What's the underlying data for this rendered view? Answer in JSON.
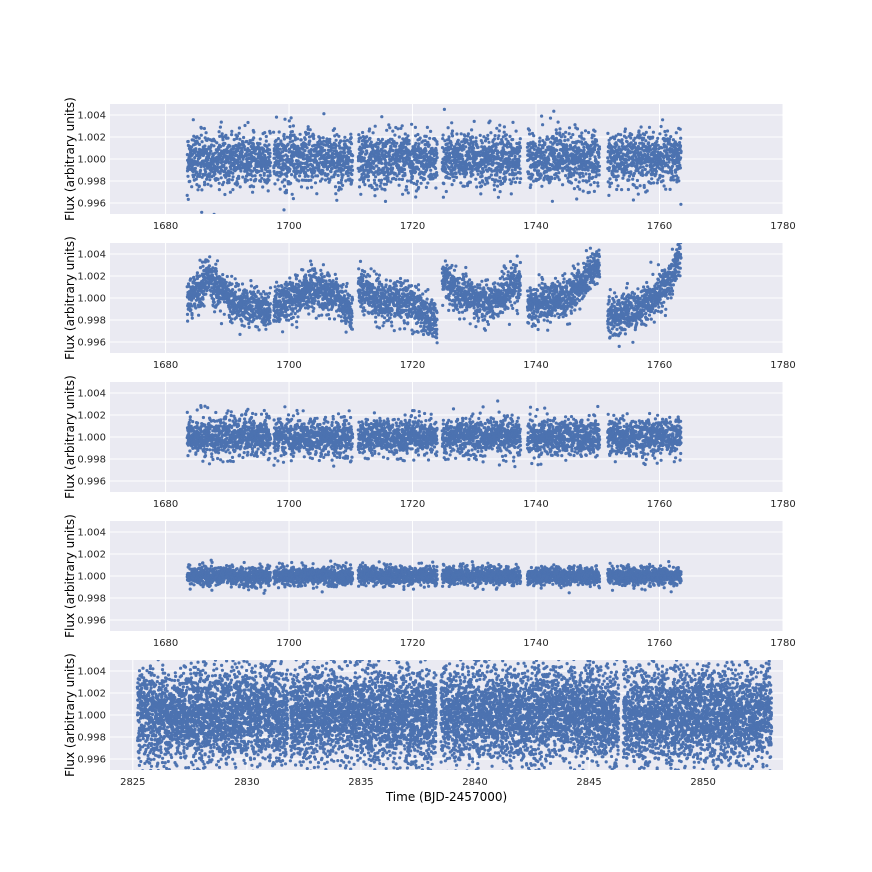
{
  "figure": {
    "background": "#ffffff",
    "panel_background": "#eaeaf2",
    "grid_color": "#ffffff",
    "marker_color": "#4c72b0"
  },
  "chart_data": [
    {
      "type": "scatter",
      "ylabel": "Flux (arbitrary units)",
      "xlabel": "",
      "xlim": [
        1671,
        1780
      ],
      "ylim": [
        0.995,
        1.005
      ],
      "xticks": [
        "1680",
        "1700",
        "1720",
        "1740",
        "1760",
        "1780"
      ],
      "yticks": [
        "0.996",
        "0.998",
        "1.000",
        "1.002",
        "1.004"
      ],
      "grid": true,
      "series": [
        {
          "segments": [
            [
              1683.5,
              1697.0
            ],
            [
              1697.5,
              1710.3
            ],
            [
              1711.2,
              1724.0
            ],
            [
              1724.8,
              1737.5
            ],
            [
              1738.6,
              1750.3
            ],
            [
              1751.6,
              1763.5
            ]
          ],
          "baseline": 1.0,
          "scatter_std": 0.0012,
          "points_per_day": 55,
          "trend": "flat"
        }
      ]
    },
    {
      "type": "scatter",
      "ylabel": "Flux (arbitrary units)",
      "xlabel": "",
      "xlim": [
        1671,
        1780
      ],
      "ylim": [
        0.995,
        1.005
      ],
      "xticks": [
        "1680",
        "1700",
        "1720",
        "1740",
        "1760",
        "1780"
      ],
      "yticks": [
        "0.996",
        "0.998",
        "1.000",
        "1.002",
        "1.004"
      ],
      "grid": true,
      "series": [
        {
          "segments": [
            [
              1683.5,
              1697.0
            ],
            [
              1697.5,
              1710.3
            ],
            [
              1711.2,
              1724.0
            ],
            [
              1724.8,
              1737.5
            ],
            [
              1738.6,
              1750.3
            ],
            [
              1751.6,
              1763.5
            ]
          ],
          "baseline": 1.0,
          "scatter_std": 0.0009,
          "points_per_day": 55,
          "trend": "systematics",
          "segment_trends": [
            [
              [
                0,
                0.9995
              ],
              [
                0.25,
                1.0018
              ],
              [
                0.5,
                1.0
              ],
              [
                1,
                0.9985
              ]
            ],
            [
              [
                0,
                0.9992
              ],
              [
                0.5,
                1.0008
              ],
              [
                0.8,
                1.0003
              ],
              [
                1,
                0.9985
              ]
            ],
            [
              [
                0,
                1.001
              ],
              [
                0.3,
                0.9998
              ],
              [
                0.7,
                0.9995
              ],
              [
                1,
                0.9975
              ]
            ],
            [
              [
                0,
                1.0022
              ],
              [
                0.2,
                1.0005
              ],
              [
                0.6,
                0.9995
              ],
              [
                1,
                1.0015
              ]
            ],
            [
              [
                0,
                0.9992
              ],
              [
                0.6,
                1.0002
              ],
              [
                1,
                1.0032
              ]
            ],
            [
              [
                0,
                0.9982
              ],
              [
                0.5,
                0.9993
              ],
              [
                0.85,
                1.0015
              ],
              [
                1,
                1.0045
              ]
            ]
          ]
        }
      ]
    },
    {
      "type": "scatter",
      "ylabel": "Flux (arbitrary units)",
      "xlabel": "",
      "xlim": [
        1671,
        1780
      ],
      "ylim": [
        0.995,
        1.005
      ],
      "xticks": [
        "1680",
        "1700",
        "1720",
        "1740",
        "1760",
        "1780"
      ],
      "yticks": [
        "0.996",
        "0.998",
        "1.000",
        "1.002",
        "1.004"
      ],
      "grid": true,
      "series": [
        {
          "segments": [
            [
              1683.5,
              1697.0
            ],
            [
              1697.5,
              1710.3
            ],
            [
              1711.2,
              1724.0
            ],
            [
              1724.8,
              1737.5
            ],
            [
              1738.6,
              1750.3
            ],
            [
              1751.6,
              1763.5
            ]
          ],
          "baseline": 1.0,
          "scatter_std": 0.00085,
          "points_per_day": 55,
          "trend": "flat"
        }
      ]
    },
    {
      "type": "scatter",
      "ylabel": "Flux (arbitrary units)",
      "xlabel": "",
      "xlim": [
        1671,
        1780
      ],
      "ylim": [
        0.995,
        1.005
      ],
      "xticks": [
        "1680",
        "1700",
        "1720",
        "1740",
        "1760",
        "1780"
      ],
      "yticks": [
        "0.996",
        "0.998",
        "1.000",
        "1.002",
        "1.004"
      ],
      "grid": true,
      "series": [
        {
          "segments": [
            [
              1683.5,
              1697.0
            ],
            [
              1697.5,
              1710.3
            ],
            [
              1711.2,
              1724.0
            ],
            [
              1724.8,
              1737.5
            ],
            [
              1738.6,
              1750.3
            ],
            [
              1751.6,
              1763.5
            ]
          ],
          "baseline": 1.0,
          "scatter_std": 0.00042,
          "points_per_day": 55,
          "trend": "flat"
        }
      ]
    },
    {
      "type": "scatter",
      "ylabel": "Flux (arbitrary units)",
      "xlabel": "Time (BJD-2457000)",
      "xlim": [
        2824.0,
        2853.5
      ],
      "ylim": [
        0.995,
        1.005
      ],
      "xticks": [
        "2825",
        "2830",
        "2835",
        "2840",
        "2845",
        "2850"
      ],
      "yticks": [
        "0.996",
        "0.998",
        "1.000",
        "1.002",
        "1.004"
      ],
      "grid": true,
      "series": [
        {
          "segments": [
            [
              2825.2,
              2831.8
            ],
            [
              2831.9,
              2838.3
            ],
            [
              2838.5,
              2846.3
            ],
            [
              2846.5,
              2853.0
            ]
          ],
          "baseline": 1.0,
          "scatter_std": 0.0022,
          "points_per_day": 420,
          "trend": "flat"
        }
      ]
    }
  ]
}
